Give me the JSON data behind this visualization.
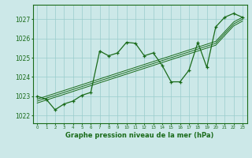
{
  "x": [
    0,
    1,
    2,
    3,
    4,
    5,
    6,
    7,
    8,
    9,
    10,
    11,
    12,
    13,
    14,
    15,
    16,
    17,
    18,
    19,
    20,
    21,
    22,
    23
  ],
  "y_main": [
    1023.0,
    1022.85,
    1022.3,
    1022.6,
    1022.75,
    1023.05,
    1023.2,
    1025.35,
    1025.1,
    1025.25,
    1025.8,
    1025.75,
    1025.1,
    1025.25,
    1024.6,
    1023.75,
    1023.75,
    1024.35,
    1025.8,
    1024.5,
    1026.6,
    1027.1,
    1027.3,
    1027.1
  ],
  "y_reg1": [
    1022.85,
    1023.0,
    1023.15,
    1023.3,
    1023.45,
    1023.6,
    1023.75,
    1023.9,
    1024.05,
    1024.2,
    1024.35,
    1024.5,
    1024.65,
    1024.8,
    1024.95,
    1025.1,
    1025.25,
    1025.4,
    1025.55,
    1025.7,
    1025.85,
    1026.35,
    1026.85,
    1027.1
  ],
  "y_reg2": [
    1022.75,
    1022.9,
    1023.05,
    1023.2,
    1023.35,
    1023.5,
    1023.65,
    1023.8,
    1023.95,
    1024.1,
    1024.25,
    1024.4,
    1024.55,
    1024.7,
    1024.85,
    1025.0,
    1025.15,
    1025.3,
    1025.45,
    1025.6,
    1025.75,
    1026.25,
    1026.75,
    1027.0
  ],
  "y_reg3": [
    1022.65,
    1022.8,
    1022.95,
    1023.1,
    1023.25,
    1023.4,
    1023.55,
    1023.7,
    1023.85,
    1024.0,
    1024.15,
    1024.3,
    1024.45,
    1024.6,
    1024.75,
    1024.9,
    1025.05,
    1025.2,
    1025.35,
    1025.5,
    1025.65,
    1026.15,
    1026.65,
    1026.9
  ],
  "line_color": "#1a6b1a",
  "bg_color": "#cce8e8",
  "grid_color": "#99cccc",
  "ylabel_values": [
    1022,
    1023,
    1024,
    1025,
    1026,
    1027
  ],
  "xlabel": "Graphe pression niveau de la mer (hPa)",
  "xlim": [
    -0.5,
    23.5
  ],
  "ylim": [
    1021.6,
    1027.75
  ]
}
